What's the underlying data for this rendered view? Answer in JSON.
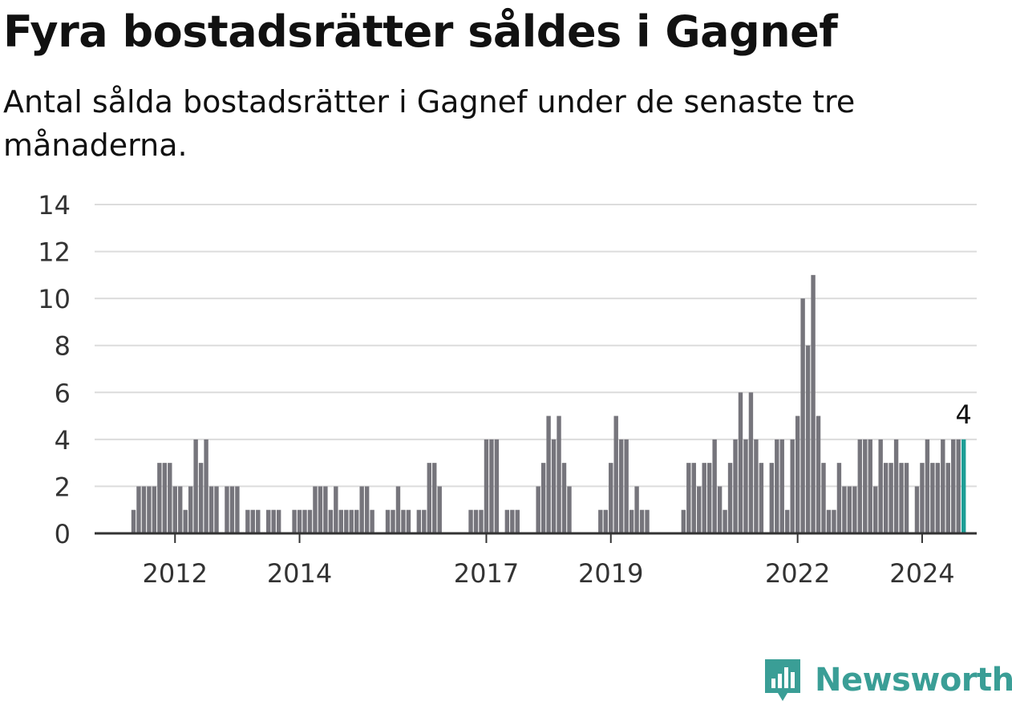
{
  "title": "Fyra bostadsrätter såldes i Gagnef",
  "subtitle": "Antal sålda bostadsrätter i Gagnef under de senaste tre månaderna.",
  "logo_text": "Newsworthy",
  "colors": {
    "bar": "#76757c",
    "highlight": "#1e9e96",
    "grid": "#dcdcdc",
    "axis": "#333333",
    "logo": "#3a9e96"
  },
  "chart_data": {
    "type": "bar",
    "xlabel": "",
    "ylabel": "",
    "ylim": [
      0,
      14
    ],
    "yticks": [
      0,
      2,
      4,
      6,
      8,
      10,
      12,
      14
    ],
    "x_tick_labels": [
      "2012",
      "2014",
      "2017",
      "2019",
      "2022",
      "2024"
    ],
    "grid": true,
    "start_month": "2011-05",
    "values": [
      1,
      2,
      2,
      2,
      2,
      3,
      3,
      3,
      2,
      2,
      1,
      2,
      4,
      3,
      4,
      2,
      2,
      0,
      2,
      2,
      2,
      0,
      1,
      1,
      1,
      0,
      1,
      1,
      1,
      0,
      0,
      1,
      1,
      1,
      1,
      2,
      2,
      2,
      1,
      2,
      1,
      1,
      1,
      1,
      2,
      2,
      1,
      0,
      0,
      1,
      1,
      2,
      1,
      1,
      0,
      1,
      1,
      3,
      3,
      2,
      0,
      0,
      0,
      0,
      0,
      1,
      1,
      1,
      4,
      4,
      4,
      0,
      1,
      1,
      1,
      0,
      0,
      0,
      2,
      3,
      5,
      4,
      5,
      3,
      2,
      0,
      0,
      0,
      0,
      0,
      1,
      1,
      3,
      5,
      4,
      4,
      1,
      2,
      1,
      1,
      0,
      0,
      0,
      0,
      0,
      0,
      1,
      3,
      3,
      2,
      3,
      3,
      4,
      2,
      1,
      3,
      4,
      6,
      4,
      6,
      4,
      3,
      0,
      3,
      4,
      4,
      1,
      4,
      5,
      10,
      8,
      11,
      5,
      3,
      1,
      1,
      3,
      2,
      2,
      2,
      4,
      4,
      4,
      2,
      4,
      3,
      3,
      4,
      3,
      3,
      0,
      2,
      3,
      4,
      3,
      3,
      4,
      3,
      4,
      4,
      4
    ],
    "highlight_last": true,
    "annotation": "4"
  }
}
